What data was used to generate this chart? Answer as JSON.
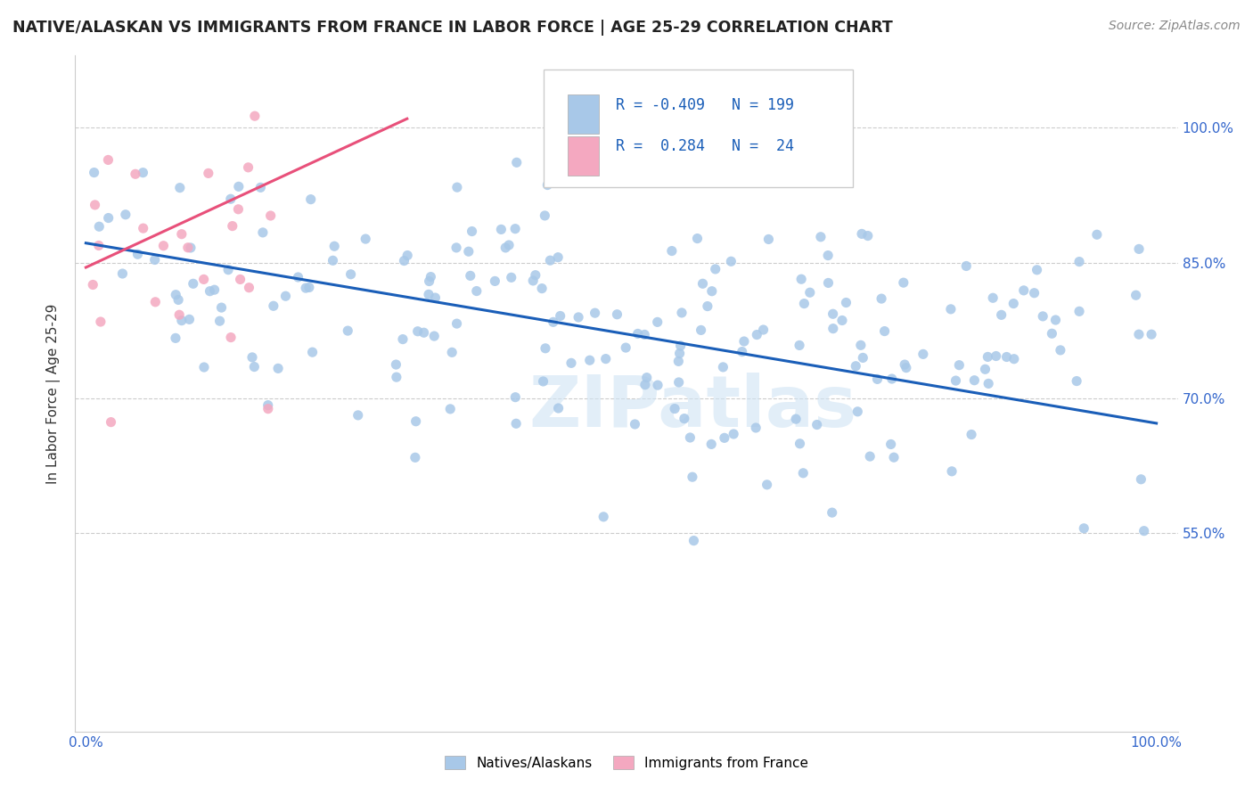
{
  "title": "NATIVE/ALASKAN VS IMMIGRANTS FROM FRANCE IN LABOR FORCE | AGE 25-29 CORRELATION CHART",
  "source": "Source: ZipAtlas.com",
  "ylabel": "In Labor Force | Age 25-29",
  "yticks": [
    "55.0%",
    "70.0%",
    "85.0%",
    "100.0%"
  ],
  "ytick_vals": [
    0.55,
    0.7,
    0.85,
    1.0
  ],
  "xlim": [
    -0.01,
    1.02
  ],
  "ylim": [
    0.33,
    1.08
  ],
  "native_color": "#a8c8e8",
  "immigrant_color": "#f4a8c0",
  "native_line_color": "#1a5eb8",
  "immigrant_line_color": "#e8507a",
  "native_R": -0.409,
  "native_N": 199,
  "immigrant_R": 0.284,
  "immigrant_N": 24,
  "watermark": "ZIPatlas",
  "background_color": "#ffffff",
  "legend_native_label": "R = -0.409   N = 199",
  "legend_immigrant_label": "R =  0.284   N =  24",
  "bottom_legend_native": "Natives/Alaskans",
  "bottom_legend_immigrant": "Immigrants from France"
}
